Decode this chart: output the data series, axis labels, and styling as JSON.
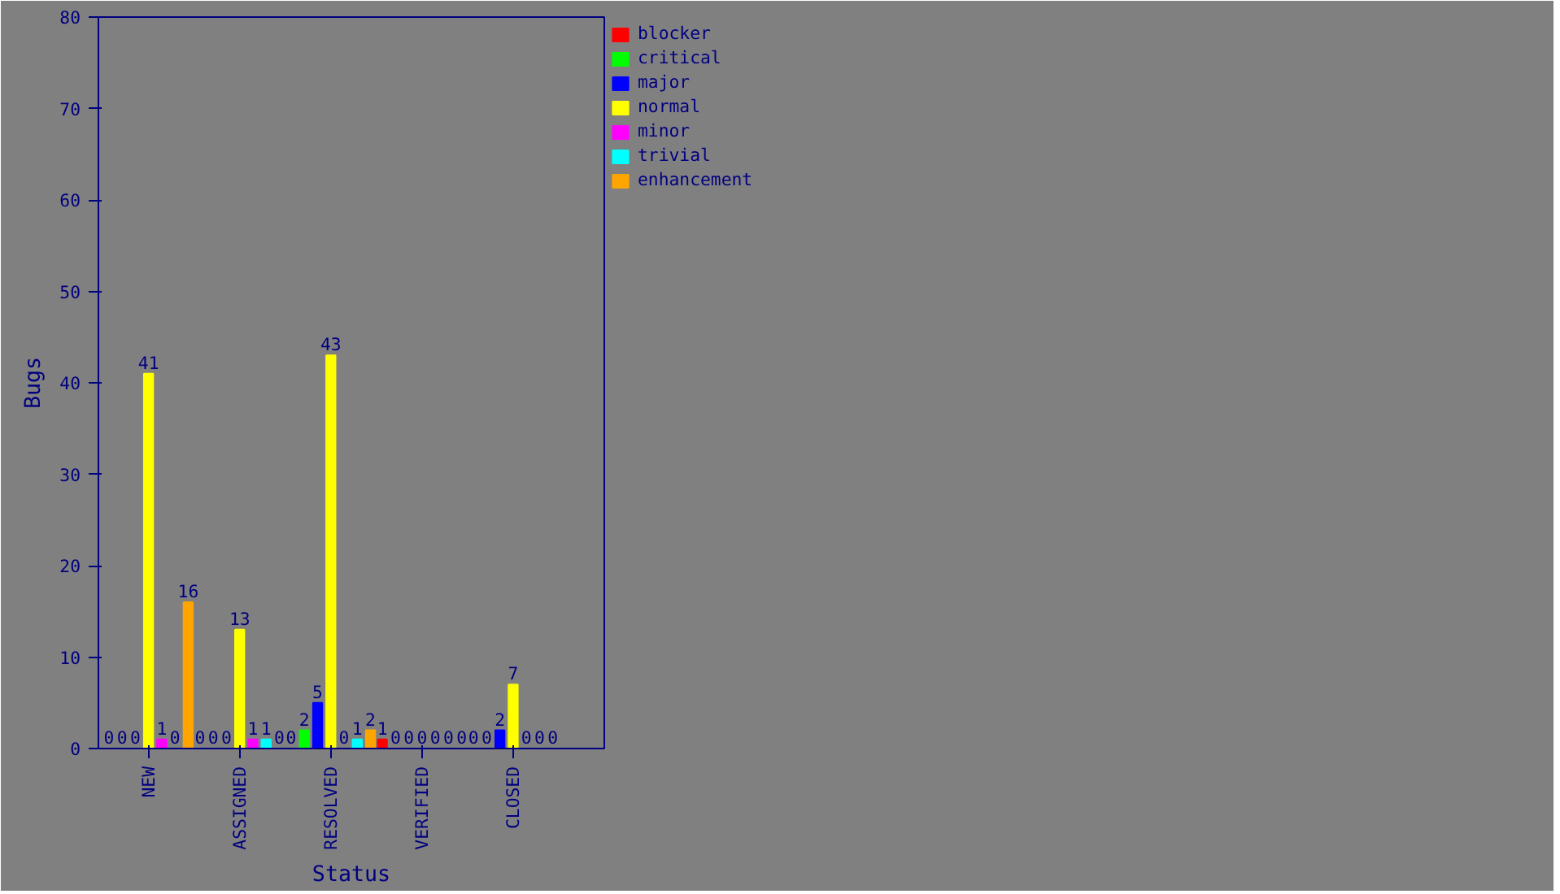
{
  "chart_data": {
    "type": "bar",
    "xlabel": "Status",
    "ylabel": "Bugs",
    "categories": [
      "NEW",
      "ASSIGNED",
      "RESOLVED",
      "VERIFIED",
      "CLOSED"
    ],
    "series": [
      {
        "name": "blocker",
        "color": "#ff0000",
        "values": [
          0,
          0,
          0,
          1,
          0
        ]
      },
      {
        "name": "critical",
        "color": "#00ff00",
        "values": [
          0,
          0,
          2,
          0,
          0
        ]
      },
      {
        "name": "major",
        "color": "#0000ff",
        "values": [
          0,
          0,
          5,
          0,
          2
        ]
      },
      {
        "name": "normal",
        "color": "#ffff00",
        "values": [
          41,
          13,
          43,
          0,
          7
        ]
      },
      {
        "name": "minor",
        "color": "#ff00ff",
        "values": [
          1,
          1,
          0,
          0,
          0
        ]
      },
      {
        "name": "trivial",
        "color": "#00ffff",
        "values": [
          0,
          1,
          1,
          0,
          0
        ]
      },
      {
        "name": "enhancement",
        "color": "#ffa500",
        "values": [
          16,
          0,
          2,
          0,
          0
        ]
      }
    ],
    "ylim": [
      0,
      80
    ],
    "yticks": [
      0,
      10,
      20,
      30,
      40,
      50,
      60,
      70,
      80
    ],
    "data_labels": true,
    "legend": "top right",
    "grid": false
  }
}
